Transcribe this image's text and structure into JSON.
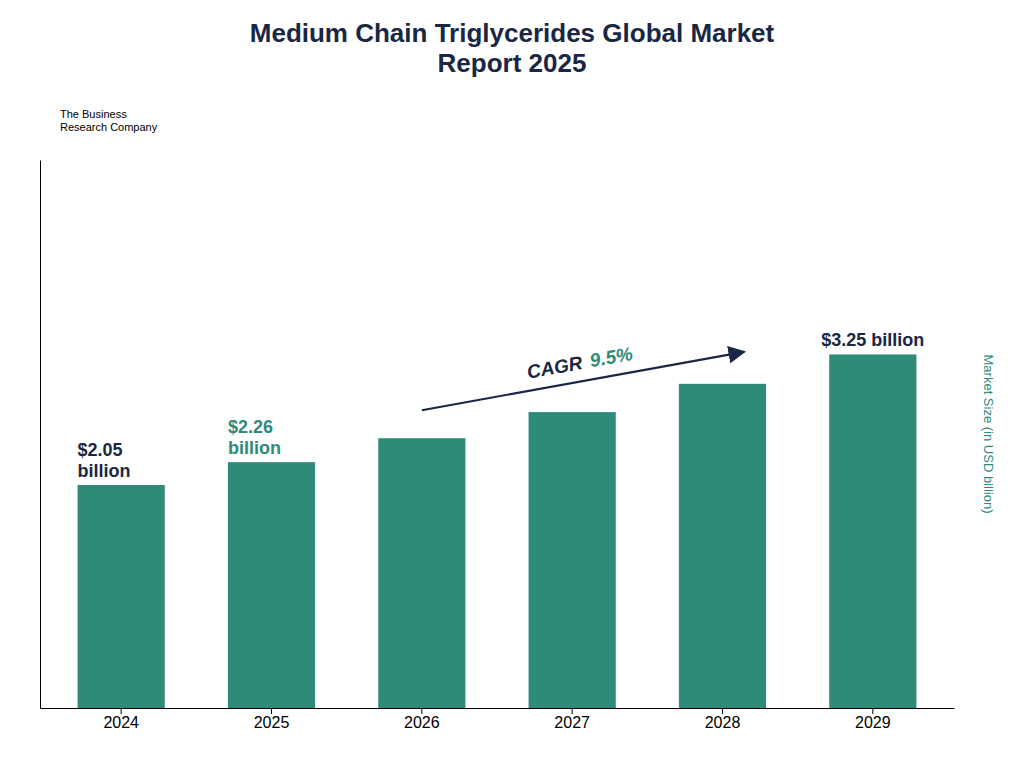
{
  "chart_data": {
    "type": "bar",
    "title": "Medium Chain Triglycerides Global Market\nReport 2025",
    "categories": [
      "2024",
      "2025",
      "2026",
      "2027",
      "2028",
      "2029"
    ],
    "values": [
      2.05,
      2.26,
      2.48,
      2.72,
      2.98,
      3.25
    ],
    "color": "#2e8b7a",
    "ylim": [
      0,
      5.0375
    ],
    "ylabel": "Market Size (in USD billion)",
    "tick_labels": "x",
    "data_labels": true,
    "value_labels": [
      "$2.05\nbillion",
      "$2.26\nbillion",
      null,
      null,
      null,
      "$3.25 billion"
    ],
    "annotations": [
      "CAGR",
      "9.5%",
      "The Business\nResearch Company"
    ]
  }
}
